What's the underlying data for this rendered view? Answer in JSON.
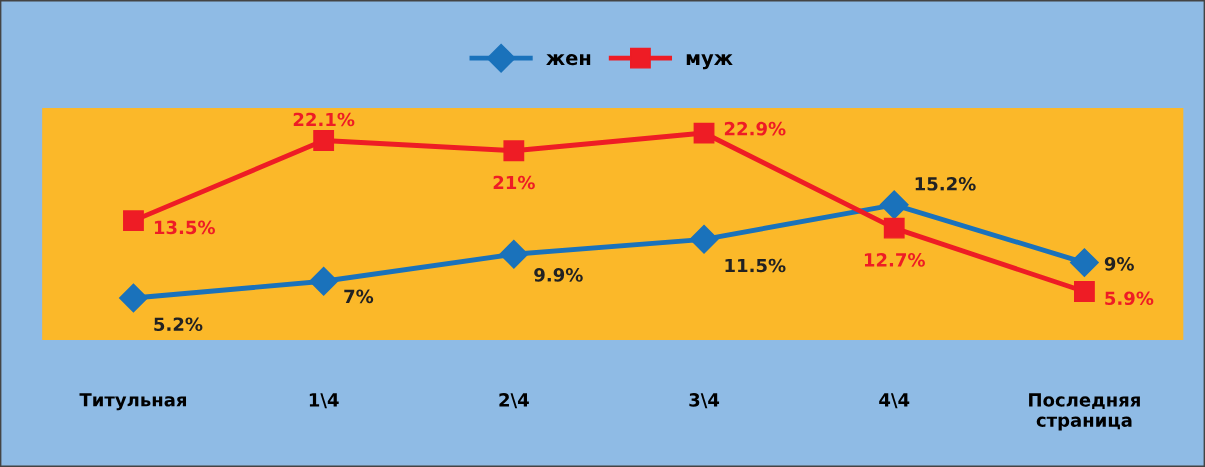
{
  "chart_data": {
    "type": "line",
    "categories": [
      "Титульная",
      "1\\4",
      "2\\4",
      "3\\4",
      "4\\4",
      "Последняя\nстраница"
    ],
    "series": [
      {
        "name": "жен",
        "color": "#1a72bb",
        "marker": "diamond",
        "values": [
          5.2,
          7,
          9.9,
          11.5,
          15.2,
          9
        ],
        "value_labels": [
          "5.2%",
          "7%",
          "9.9%",
          "11.5%",
          "15.2%",
          "9%"
        ]
      },
      {
        "name": "муж",
        "color": "#ee1c25",
        "marker": "square",
        "values": [
          13.5,
          22.1,
          21,
          22.9,
          12.7,
          5.9
        ],
        "value_labels": [
          "13.5%",
          "22.1%",
          "21%",
          "22.9%",
          "12.7%",
          "5.9%"
        ]
      }
    ],
    "ylim": [
      0.7,
      25.6
    ],
    "tick_labels": "x",
    "grid": false,
    "legend": "top",
    "line_style": "solid"
  }
}
